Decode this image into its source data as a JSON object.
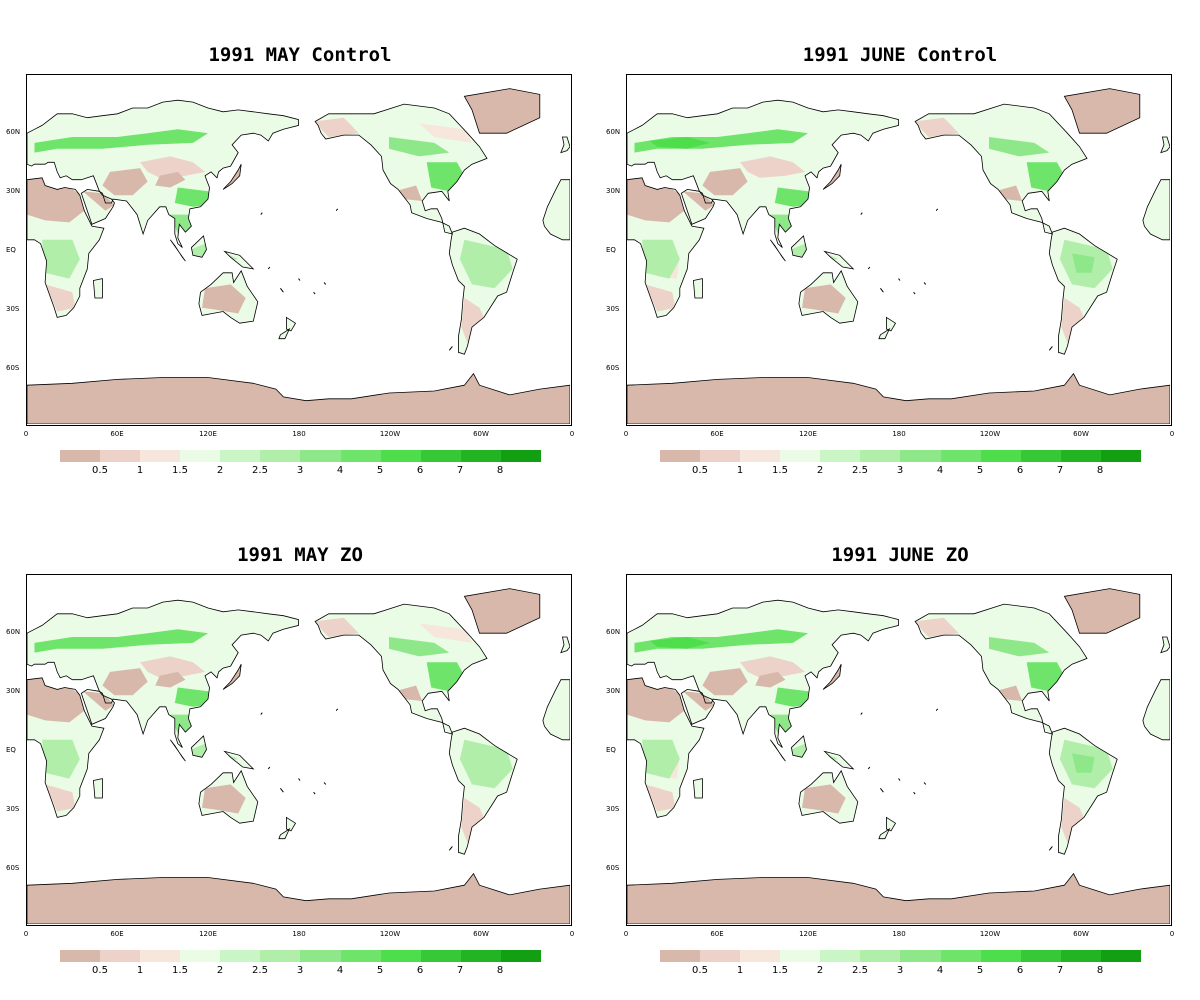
{
  "panels": [
    {
      "title": "1991 MAY Control",
      "variant": 0
    },
    {
      "title": "1991 JUNE Control",
      "variant": 1
    },
    {
      "title": "1991 MAY ZO",
      "variant": 2
    },
    {
      "title": "1991 JUNE ZO",
      "variant": 3
    }
  ],
  "lat_ticks": [
    "60N",
    "30N",
    "EQ",
    "30S",
    "60S"
  ],
  "lon_ticks": [
    "0",
    "60E",
    "120E",
    "180",
    "120W",
    "60W",
    "0"
  ],
  "colorbar": {
    "labels": [
      "0.5",
      "1",
      "1.5",
      "2",
      "2.5",
      "3",
      "4",
      "5",
      "6",
      "7",
      "8"
    ],
    "colors": [
      "#d9b8ac",
      "#ecd2c8",
      "#f6e6dc",
      "#eafbe6",
      "#caf5c4",
      "#b0eeaa",
      "#8ee88a",
      "#6ee46a",
      "#4ede4c",
      "#36c836",
      "#22b422",
      "#12a012"
    ]
  }
}
